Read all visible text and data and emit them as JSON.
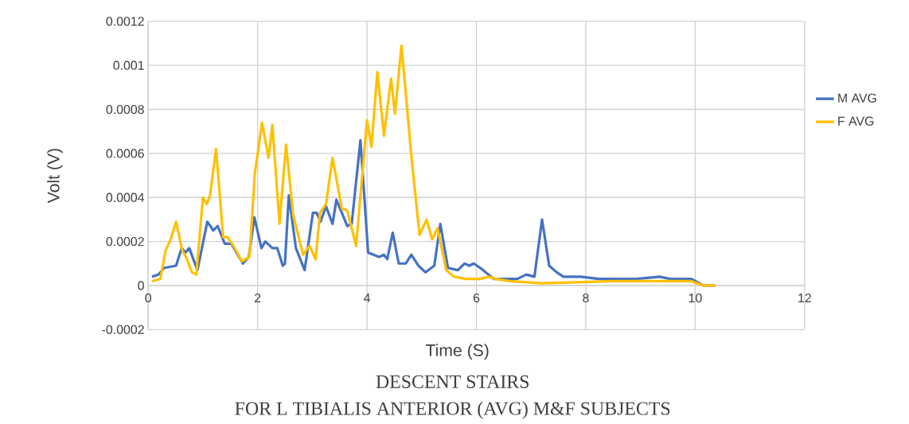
{
  "chart_data": {
    "type": "line",
    "title": "DESCENT STAIRS",
    "subtitle": "FOR  L TIBIALIS ANTERIOR (AVG) M&F SUBJECTS",
    "xlabel": "Time (S)",
    "ylabel": "Volt (V)",
    "xlim": [
      0,
      12
    ],
    "xticks": [
      0,
      2,
      4,
      6,
      8,
      10,
      12
    ],
    "ylim": [
      -0.0002,
      0.0012
    ],
    "yticks": [
      {
        "value": -0.0002,
        "label": "-0.0002"
      },
      {
        "value": 0,
        "label": "0"
      },
      {
        "value": 0.0002,
        "label": "0.0002"
      },
      {
        "value": 0.0004,
        "label": "0.0004"
      },
      {
        "value": 0.0006,
        "label": "0.0006"
      },
      {
        "value": 0.0008,
        "label": "0.0008"
      },
      {
        "value": 0.001,
        "label": "0.001"
      },
      {
        "value": 0.0012,
        "label": "0.0012"
      }
    ],
    "grid": true,
    "legend": "right",
    "marker": "none",
    "line_style": "solid",
    "series": [
      {
        "name": "M AVG",
        "color": "#4472c4",
        "x": [
          0.07,
          0.19,
          0.29,
          0.51,
          0.61,
          0.68,
          0.75,
          0.9,
          1.08,
          1.19,
          1.27,
          1.4,
          1.52,
          1.73,
          1.84,
          1.94,
          2.07,
          2.14,
          2.27,
          2.36,
          2.46,
          2.5,
          2.57,
          2.7,
          2.86,
          3.01,
          3.08,
          3.15,
          3.25,
          3.37,
          3.44,
          3.64,
          3.72,
          3.88,
          4.02,
          4.12,
          4.22,
          4.31,
          4.37,
          4.47,
          4.58,
          4.71,
          4.81,
          4.94,
          5.07,
          5.23,
          5.34,
          5.48,
          5.66,
          5.78,
          5.87,
          5.95,
          6.07,
          6.32,
          6.75,
          6.91,
          7.06,
          7.2,
          7.33,
          7.47,
          7.59,
          7.91,
          8.24,
          8.92,
          9.35,
          9.54,
          9.93,
          10.15,
          10.37
        ],
        "values": [
          4e-05,
          5e-05,
          8e-05,
          9e-05,
          0.00017,
          0.00015,
          0.00017,
          7e-05,
          0.00029,
          0.00025,
          0.00027,
          0.00019,
          0.00019,
          0.0001,
          0.00013,
          0.00031,
          0.00017,
          0.0002,
          0.00017,
          0.00017,
          9e-05,
          0.0001,
          0.00041,
          0.00017,
          7e-05,
          0.00033,
          0.00033,
          0.00029,
          0.00036,
          0.00028,
          0.00039,
          0.00027,
          0.00028,
          0.00066,
          0.00015,
          0.00014,
          0.00013,
          0.00014,
          0.00012,
          0.00024,
          0.0001,
          0.0001,
          0.00014,
          9e-05,
          6e-05,
          9e-05,
          0.00028,
          8e-05,
          7e-05,
          0.0001,
          9e-05,
          0.0001,
          8e-05,
          3e-05,
          3e-05,
          5e-05,
          4e-05,
          0.0003,
          9e-05,
          6e-05,
          4e-05,
          4e-05,
          3e-05,
          3e-05,
          4e-05,
          3e-05,
          3e-05,
          0,
          0
        ]
      },
      {
        "name": "F AVG",
        "color": "#ffc000",
        "x": [
          0.07,
          0.22,
          0.32,
          0.41,
          0.51,
          0.62,
          0.69,
          0.8,
          0.88,
          1.0,
          1.07,
          1.13,
          1.24,
          1.37,
          1.45,
          1.56,
          1.71,
          1.85,
          1.95,
          2.08,
          2.2,
          2.27,
          2.4,
          2.52,
          2.65,
          2.83,
          2.95,
          3.06,
          3.14,
          3.25,
          3.37,
          3.54,
          3.64,
          3.8,
          4.0,
          4.08,
          4.19,
          4.31,
          4.44,
          4.51,
          4.63,
          4.81,
          4.96,
          5.09,
          5.19,
          5.29,
          5.45,
          5.59,
          5.81,
          6.07,
          6.22,
          6.36,
          6.61,
          7.2,
          8.49,
          9.93,
          10.15,
          10.37
        ],
        "values": [
          2e-05,
          3e-05,
          0.00016,
          0.00021,
          0.00029,
          0.00016,
          0.00013,
          6e-05,
          5e-05,
          0.0004,
          0.00037,
          0.00041,
          0.00062,
          0.00022,
          0.00022,
          0.00018,
          0.00011,
          0.00013,
          0.00051,
          0.00074,
          0.00058,
          0.00073,
          0.00028,
          0.00064,
          0.00032,
          0.00014,
          0.00018,
          0.00012,
          0.00033,
          0.00037,
          0.00058,
          0.00035,
          0.00034,
          0.00018,
          0.00075,
          0.00063,
          0.00097,
          0.00068,
          0.00094,
          0.00078,
          0.00109,
          0.00059,
          0.00023,
          0.0003,
          0.00021,
          0.00026,
          7e-05,
          4e-05,
          3e-05,
          3e-05,
          4e-05,
          3e-05,
          2e-05,
          1e-05,
          2e-05,
          2e-05,
          0,
          0
        ]
      }
    ]
  }
}
